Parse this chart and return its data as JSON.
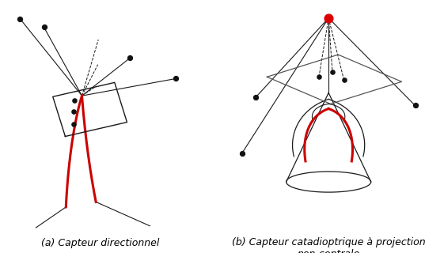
{
  "caption_a": "(a) Capteur directionnel",
  "caption_b": "(b) Capteur catadioptrique à projection non-centrale",
  "bg_color": "#ffffff",
  "line_color": "#1a1a1a",
  "red_color": "#cc0000",
  "red_dot_color": "#dd0000",
  "dot_color": "#111111",
  "font_size": 9
}
